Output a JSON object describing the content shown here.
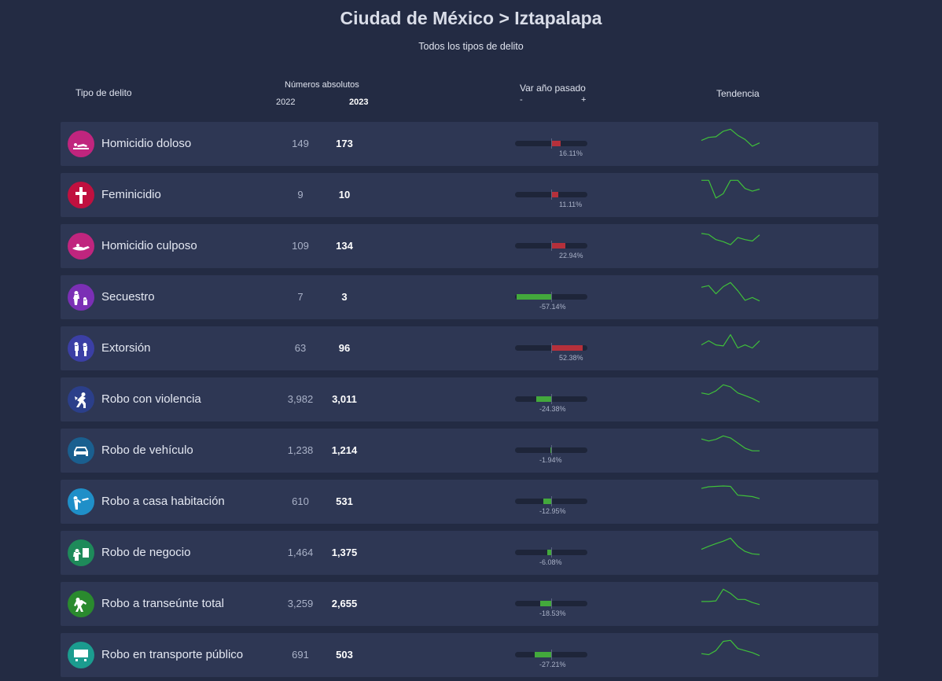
{
  "header": {
    "title": "Ciudad de México > Iztapalapa",
    "subtitle": "Todos los tipos de delito"
  },
  "columns": {
    "type": "Tipo de delito",
    "absolute": "Números absolutos",
    "year_prev": "2022",
    "year_curr": "2023",
    "variation": "Var año pasado",
    "minus": "-",
    "plus": "+",
    "trend": "Tendencia"
  },
  "colors": {
    "increase": "#b5303b",
    "decrease": "#43a93c",
    "trend_line": "#3fbf3a"
  },
  "rows": [
    {
      "name": "Homicidio doloso",
      "icon": "homicide-icon",
      "icon_color": "#c0257e",
      "v2022": "149",
      "v2023": "173",
      "pct": "16.11%",
      "change": 16.11,
      "trend": [
        0.4,
        0.55,
        0.58,
        0.85,
        0.95,
        0.65,
        0.45,
        0.12,
        0.28
      ]
    },
    {
      "name": "Feminicidio",
      "icon": "cross-icon",
      "icon_color": "#c0103f",
      "v2022": "9",
      "v2023": "10",
      "pct": "11.11%",
      "change": 11.11,
      "trend": [
        0.95,
        0.95,
        0.08,
        0.3,
        0.95,
        0.95,
        0.55,
        0.42,
        0.52
      ]
    },
    {
      "name": "Homicidio culposo",
      "icon": "accident-icon",
      "icon_color": "#c0257e",
      "v2022": "109",
      "v2023": "134",
      "pct": "22.94%",
      "change": 22.94,
      "trend": [
        0.85,
        0.8,
        0.55,
        0.45,
        0.3,
        0.65,
        0.55,
        0.48,
        0.78
      ]
    },
    {
      "name": "Secuestro",
      "icon": "kidnap-icon",
      "icon_color": "#7b2fb5",
      "v2022": "7",
      "v2023": "3",
      "pct": "-57.14%",
      "change": -57.14,
      "trend": [
        0.72,
        0.8,
        0.4,
        0.75,
        0.95,
        0.55,
        0.08,
        0.22,
        0.05
      ]
    },
    {
      "name": "Extorsión",
      "icon": "extortion-icon",
      "icon_color": "#3b3fa5",
      "v2022": "63",
      "v2023": "96",
      "pct": "52.38%",
      "change": 52.38,
      "trend": [
        0.4,
        0.6,
        0.4,
        0.35,
        0.9,
        0.25,
        0.4,
        0.25,
        0.6
      ]
    },
    {
      "name": "Robo con violencia",
      "icon": "robbery-icon",
      "icon_color": "#2b3f8a",
      "v2022": "3,982",
      "v2023": "3,011",
      "pct": "-24.38%",
      "change": -24.38,
      "trend": [
        0.55,
        0.48,
        0.65,
        0.95,
        0.85,
        0.55,
        0.42,
        0.28,
        0.1
      ]
    },
    {
      "name": "Robo de vehículo",
      "icon": "car-icon",
      "icon_color": "#1a5f8f",
      "v2022": "1,238",
      "v2023": "1,214",
      "pct": "-1.94%",
      "change": -1.94,
      "trend": [
        0.8,
        0.7,
        0.78,
        0.95,
        0.85,
        0.6,
        0.35,
        0.22,
        0.22
      ]
    },
    {
      "name": "Robo a casa habitación",
      "icon": "house-robbery-icon",
      "icon_color": "#1f8fc8",
      "v2022": "610",
      "v2023": "531",
      "pct": "-12.95%",
      "change": -12.95,
      "trend": [
        0.88,
        0.96,
        0.98,
        1.0,
        0.98,
        0.55,
        0.52,
        0.48,
        0.38
      ]
    },
    {
      "name": "Robo de negocio",
      "icon": "business-robbery-icon",
      "icon_color": "#1e8a5a",
      "v2022": "1,464",
      "v2023": "1,375",
      "pct": "-6.08%",
      "change": -6.08,
      "trend": [
        0.4,
        0.55,
        0.68,
        0.8,
        0.95,
        0.55,
        0.3,
        0.18,
        0.15
      ]
    },
    {
      "name": "Robo a transeúnte total",
      "icon": "pedestrian-robbery-icon",
      "icon_color": "#2a8a2e",
      "v2022": "3,259",
      "v2023": "2,655",
      "pct": "-18.53%",
      "change": -18.53,
      "trend": [
        0.35,
        0.35,
        0.38,
        0.95,
        0.75,
        0.45,
        0.45,
        0.3,
        0.2
      ]
    },
    {
      "name": "Robo en transporte público",
      "icon": "transport-robbery-icon",
      "icon_color": "#1b9c8f",
      "v2022": "691",
      "v2023": "503",
      "pct": "-27.21%",
      "change": -27.21,
      "trend": [
        0.3,
        0.25,
        0.45,
        0.9,
        0.95,
        0.55,
        0.45,
        0.35,
        0.2
      ]
    }
  ]
}
